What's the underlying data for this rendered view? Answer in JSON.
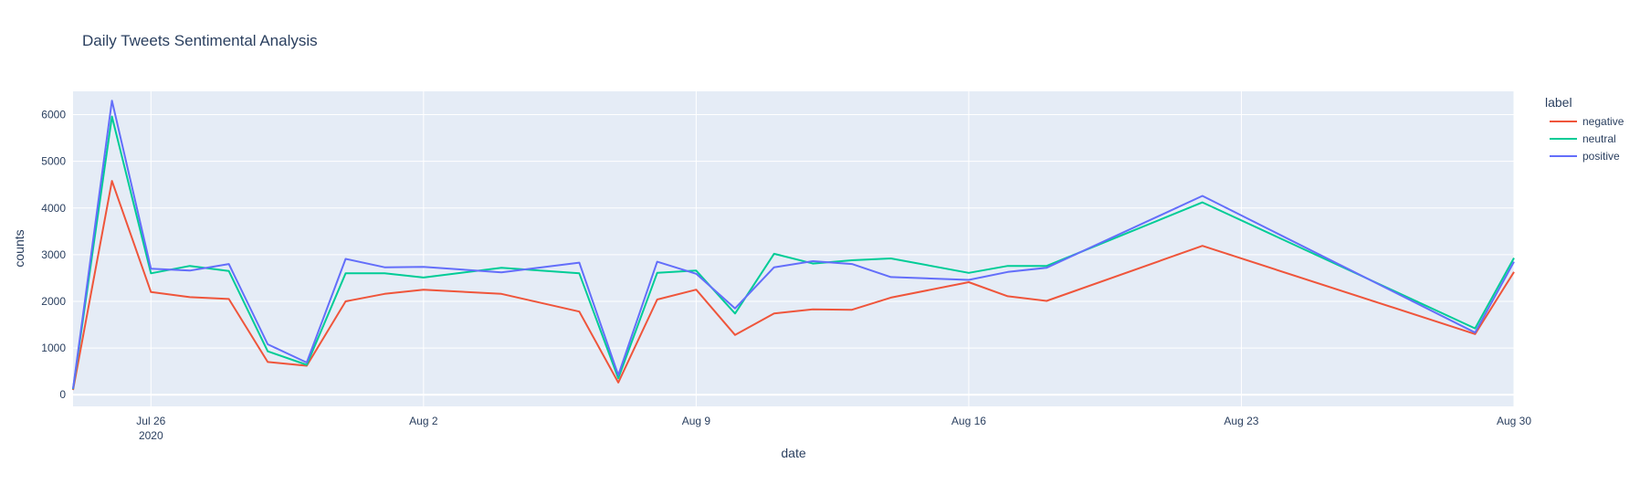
{
  "chart_data": {
    "type": "line",
    "title": "Daily Tweets Sentimental Analysis",
    "xlabel": "date",
    "ylabel": "counts",
    "xlim": [
      "2020-07-24",
      "2020-08-30"
    ],
    "ylim": [
      -250,
      6500
    ],
    "grid": true,
    "legend_title": "label",
    "legend_placement": "top-right",
    "x_ticks": [
      {
        "value": "2020-07-26",
        "label": "Jul 26",
        "sublabel": "2020"
      },
      {
        "value": "2020-08-02",
        "label": "Aug 2",
        "sublabel": ""
      },
      {
        "value": "2020-08-09",
        "label": "Aug 9",
        "sublabel": ""
      },
      {
        "value": "2020-08-16",
        "label": "Aug 16",
        "sublabel": ""
      },
      {
        "value": "2020-08-23",
        "label": "Aug 23",
        "sublabel": ""
      },
      {
        "value": "2020-08-30",
        "label": "Aug 30",
        "sublabel": ""
      }
    ],
    "y_ticks": [
      {
        "value": 0,
        "label": "0"
      },
      {
        "value": 1000,
        "label": "1000"
      },
      {
        "value": 2000,
        "label": "2000"
      },
      {
        "value": 3000,
        "label": "3000"
      },
      {
        "value": 4000,
        "label": "4000"
      },
      {
        "value": 5000,
        "label": "5000"
      },
      {
        "value": 6000,
        "label": "6000"
      }
    ],
    "x": [
      "2020-07-24",
      "2020-07-25",
      "2020-07-26",
      "2020-07-27",
      "2020-07-28",
      "2020-07-29",
      "2020-07-30",
      "2020-07-31",
      "2020-08-01",
      "2020-08-02",
      "2020-08-04",
      "2020-08-06",
      "2020-08-07",
      "2020-08-08",
      "2020-08-09",
      "2020-08-10",
      "2020-08-11",
      "2020-08-12",
      "2020-08-13",
      "2020-08-14",
      "2020-08-16",
      "2020-08-17",
      "2020-08-18",
      "2020-08-22",
      "2020-08-29",
      "2020-08-30"
    ],
    "series": [
      {
        "name": "negative",
        "color": "#EF553B",
        "values": [
          100,
          4580,
          2200,
          2090,
          2050,
          700,
          620,
          2000,
          2160,
          2250,
          2160,
          1780,
          260,
          2040,
          2250,
          1280,
          1740,
          1830,
          1820,
          2080,
          2410,
          2110,
          2010,
          3190,
          1300,
          2630
        ]
      },
      {
        "name": "neutral",
        "color": "#00CC96",
        "values": [
          120,
          5960,
          2600,
          2760,
          2650,
          930,
          640,
          2600,
          2600,
          2510,
          2720,
          2600,
          350,
          2610,
          2660,
          1740,
          3020,
          2810,
          2880,
          2920,
          2610,
          2760,
          2760,
          4120,
          1420,
          2930
        ]
      },
      {
        "name": "positive",
        "color": "#636EFA",
        "values": [
          130,
          6300,
          2700,
          2660,
          2800,
          1080,
          690,
          2910,
          2730,
          2740,
          2620,
          2830,
          420,
          2850,
          2590,
          1850,
          2730,
          2860,
          2800,
          2520,
          2460,
          2630,
          2720,
          4260,
          1330,
          2850
        ]
      }
    ]
  }
}
